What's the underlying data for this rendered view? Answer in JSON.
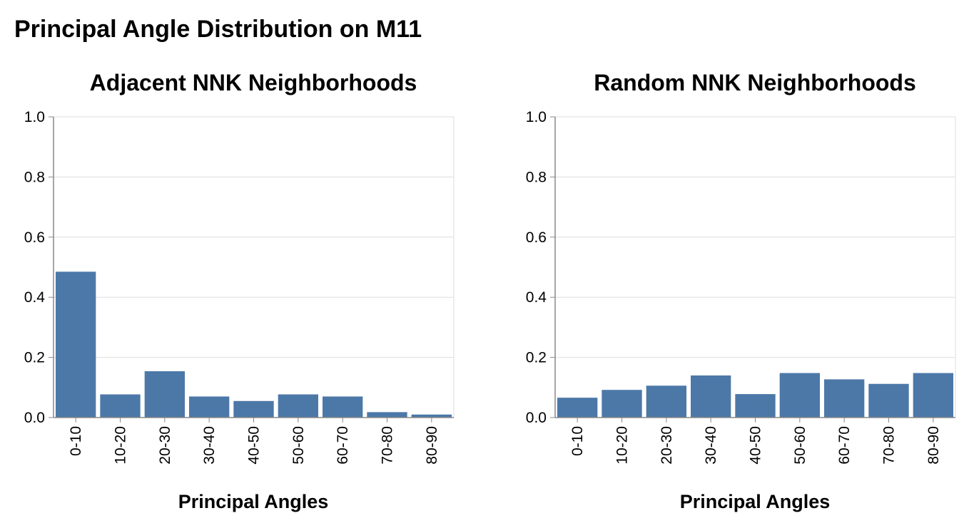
{
  "title": "Principal Angle Distribution on M11",
  "colors": {
    "bar": "#4c78a8",
    "grid": "#dddddd",
    "axis": "#888888"
  },
  "chart_data": [
    {
      "type": "bar",
      "title": "Adjacent NNK Neighborhoods",
      "xlabel": "Principal Angles",
      "ylabel": "",
      "ylim": [
        0,
        1.0
      ],
      "yticks": [
        "0.0",
        "0.2",
        "0.4",
        "0.6",
        "0.8",
        "1.0"
      ],
      "grid": true,
      "categories": [
        "0-10",
        "10-20",
        "20-30",
        "30-40",
        "40-50",
        "50-60",
        "60-70",
        "70-80",
        "80-90"
      ],
      "values": [
        0.485,
        0.077,
        0.154,
        0.07,
        0.055,
        0.077,
        0.07,
        0.018,
        0.01
      ]
    },
    {
      "type": "bar",
      "title": "Random NNK Neighborhoods",
      "xlabel": "Principal Angles",
      "ylabel": "",
      "ylim": [
        0,
        1.0
      ],
      "yticks": [
        "0.0",
        "0.2",
        "0.4",
        "0.6",
        "0.8",
        "1.0"
      ],
      "grid": true,
      "categories": [
        "0-10",
        "10-20",
        "20-30",
        "30-40",
        "40-50",
        "50-60",
        "60-70",
        "70-80",
        "80-90"
      ],
      "values": [
        0.066,
        0.092,
        0.106,
        0.14,
        0.078,
        0.148,
        0.127,
        0.112,
        0.148
      ]
    }
  ]
}
